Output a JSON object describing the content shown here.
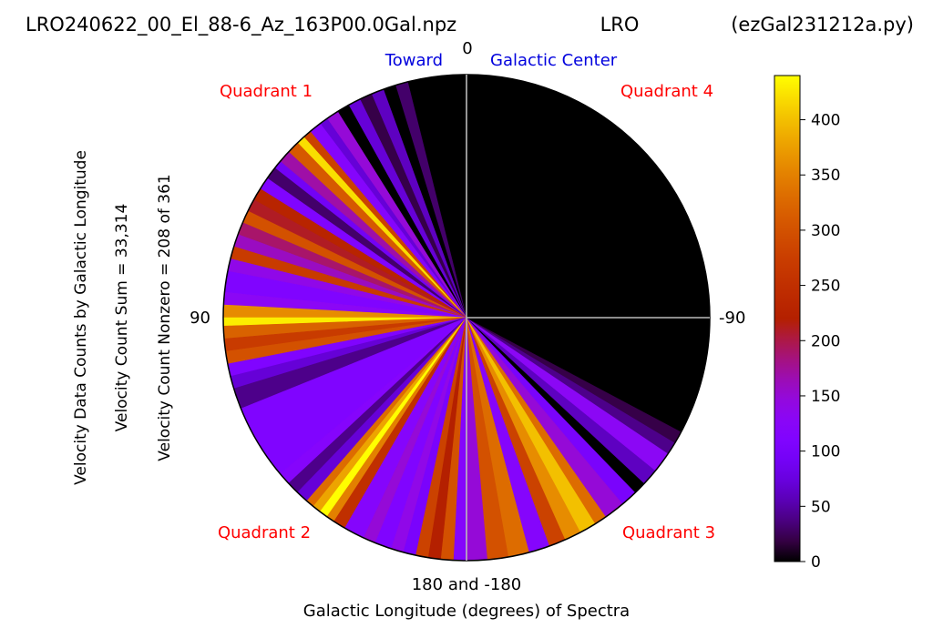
{
  "chart_data": {
    "type": "polar-sector",
    "header": {
      "filename": "LRO240622_00_El_88-6_Az_163P00.0Gal.npz",
      "station": "LRO",
      "script": "(ezGal231212a.py)"
    },
    "top_label": {
      "left": "Toward",
      "center": "0",
      "right": "Galactic Center"
    },
    "side_labels": {
      "left": "90",
      "right": "-90",
      "bottom": "180 and -180"
    },
    "xlabel": "Galactic Longitude (degrees) of Spectra",
    "ylabel_lines": [
      "Velocity Data Counts by Galactic Longitude",
      "Velocity Count Sum = 33,314",
      "Velocity Count Nonzero = 208 of 361"
    ],
    "quadrant_labels": [
      "Quadrant 1",
      "Quadrant 2",
      "Quadrant 3",
      "Quadrant 4"
    ],
    "colorbar": {
      "colormap": "gnuplot",
      "range": [
        0,
        440
      ],
      "ticks": [
        0,
        50,
        100,
        150,
        200,
        250,
        300,
        350,
        400
      ],
      "tick_labels": [
        "0",
        "50",
        "100",
        "150",
        "200",
        "250",
        "300",
        "350",
        "400"
      ]
    },
    "colors": {
      "quadrant_label": "#ff0000",
      "toward_label": "#0000dd",
      "axis_line": "#bbbbbb",
      "zero_count": "#000000"
    },
    "longitude_range": [
      -180,
      180
    ],
    "longitude_counts": [
      {
        "from": -180,
        "to": -175,
        "count": 150
      },
      {
        "from": -175,
        "to": -170,
        "count": 300
      },
      {
        "from": -170,
        "to": -165,
        "count": 330
      },
      {
        "from": -165,
        "to": -160,
        "count": 120
      },
      {
        "from": -160,
        "to": -156,
        "count": 280
      },
      {
        "from": -156,
        "to": -152,
        "count": 360
      },
      {
        "from": -152,
        "to": -148,
        "count": 400
      },
      {
        "from": -148,
        "to": -145,
        "count": 330
      },
      {
        "from": -145,
        "to": -140,
        "count": 150
      },
      {
        "from": -140,
        "to": -136,
        "count": 100
      },
      {
        "from": -136,
        "to": -133,
        "count": 0
      },
      {
        "from": -133,
        "to": -129,
        "count": 60
      },
      {
        "from": -129,
        "to": -124,
        "count": 130
      },
      {
        "from": -124,
        "to": -121,
        "count": 40
      },
      {
        "from": -121,
        "to": -118,
        "count": 20
      },
      {
        "from": -118,
        "to": -90,
        "count": 0
      },
      {
        "from": -90,
        "to": 0,
        "count": 0
      },
      {
        "from": 0,
        "to": 14,
        "count": 0
      },
      {
        "from": 14,
        "to": 17,
        "count": 30
      },
      {
        "from": 17,
        "to": 20,
        "count": 0
      },
      {
        "from": 20,
        "to": 23,
        "count": 60
      },
      {
        "from": 23,
        "to": 26,
        "count": 20
      },
      {
        "from": 26,
        "to": 29,
        "count": 70
      },
      {
        "from": 29,
        "to": 32,
        "count": 0
      },
      {
        "from": 32,
        "to": 35,
        "count": 150
      },
      {
        "from": 35,
        "to": 37,
        "count": 70
      },
      {
        "from": 37,
        "to": 40,
        "count": 120
      },
      {
        "from": 40,
        "to": 42,
        "count": 280
      },
      {
        "from": 42,
        "to": 44,
        "count": 420
      },
      {
        "from": 44,
        "to": 47,
        "count": 310
      },
      {
        "from": 47,
        "to": 50,
        "count": 170
      },
      {
        "from": 50,
        "to": 52,
        "count": 90
      },
      {
        "from": 52,
        "to": 55,
        "count": 30
      },
      {
        "from": 55,
        "to": 58,
        "count": 110
      },
      {
        "from": 58,
        "to": 61,
        "count": 230
      },
      {
        "from": 61,
        "to": 64,
        "count": 210
      },
      {
        "from": 64,
        "to": 67,
        "count": 300
      },
      {
        "from": 67,
        "to": 70,
        "count": 190
      },
      {
        "from": 70,
        "to": 73,
        "count": 160
      },
      {
        "from": 73,
        "to": 76,
        "count": 270
      },
      {
        "from": 76,
        "to": 79,
        "count": 140
      },
      {
        "from": 79,
        "to": 84,
        "count": 110
      },
      {
        "from": 84,
        "to": 87,
        "count": 130
      },
      {
        "from": 87,
        "to": 90,
        "count": 360
      },
      {
        "from": 90,
        "to": 92,
        "count": 430
      },
      {
        "from": 92,
        "to": 95,
        "count": 320
      },
      {
        "from": 95,
        "to": 98,
        "count": 270
      },
      {
        "from": 98,
        "to": 101,
        "count": 300
      },
      {
        "from": 101,
        "to": 104,
        "count": 110
      },
      {
        "from": 104,
        "to": 107,
        "count": 70
      },
      {
        "from": 107,
        "to": 112,
        "count": 40
      },
      {
        "from": 112,
        "to": 130,
        "count": 110
      },
      {
        "from": 130,
        "to": 133,
        "count": 120
      },
      {
        "from": 133,
        "to": 136,
        "count": 40
      },
      {
        "from": 136,
        "to": 139,
        "count": 70
      },
      {
        "from": 139,
        "to": 141,
        "count": 330
      },
      {
        "from": 141,
        "to": 143,
        "count": 380
      },
      {
        "from": 143,
        "to": 145,
        "count": 440
      },
      {
        "from": 145,
        "to": 147,
        "count": 350
      },
      {
        "from": 147,
        "to": 150,
        "count": 250
      },
      {
        "from": 150,
        "to": 155,
        "count": 120
      },
      {
        "from": 155,
        "to": 158,
        "count": 150
      },
      {
        "from": 158,
        "to": 162,
        "count": 110
      },
      {
        "from": 162,
        "to": 165,
        "count": 140
      },
      {
        "from": 165,
        "to": 168,
        "count": 100
      },
      {
        "from": 168,
        "to": 171,
        "count": 280
      },
      {
        "from": 171,
        "to": 174,
        "count": 220
      },
      {
        "from": 174,
        "to": 177,
        "count": 300
      },
      {
        "from": 177,
        "to": 180,
        "count": 120
      }
    ]
  }
}
